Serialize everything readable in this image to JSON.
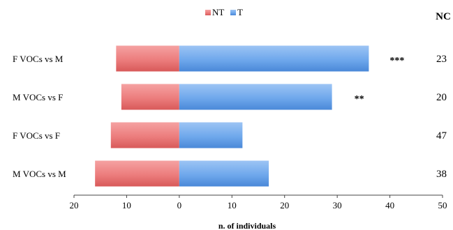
{
  "chart_data": {
    "type": "bar",
    "orientation": "horizontal",
    "stacking": "diverging",
    "categories": [
      "F VOCs vs M",
      "M VOCs vs F",
      "F VOCs vs F",
      "M VOCs vs M"
    ],
    "series": [
      {
        "name": "NT",
        "values": [
          12,
          11,
          13,
          16
        ],
        "direction": "left",
        "color": "#e46b6b"
      },
      {
        "name": "T",
        "values": [
          36,
          29,
          12,
          17
        ],
        "direction": "right",
        "color": "#5b9be6"
      }
    ],
    "significance": [
      "***",
      "**",
      "",
      ""
    ],
    "nc_header": "NC",
    "nc_values": [
      "23",
      "20",
      "47",
      "38"
    ],
    "xlabel": "n. of individuals",
    "xtick_labels": [
      "20",
      "10",
      "0",
      "10",
      "20",
      "30",
      "40",
      "50"
    ],
    "xlim": [
      -20,
      50
    ],
    "legend_position": "top-center",
    "grid": false
  }
}
